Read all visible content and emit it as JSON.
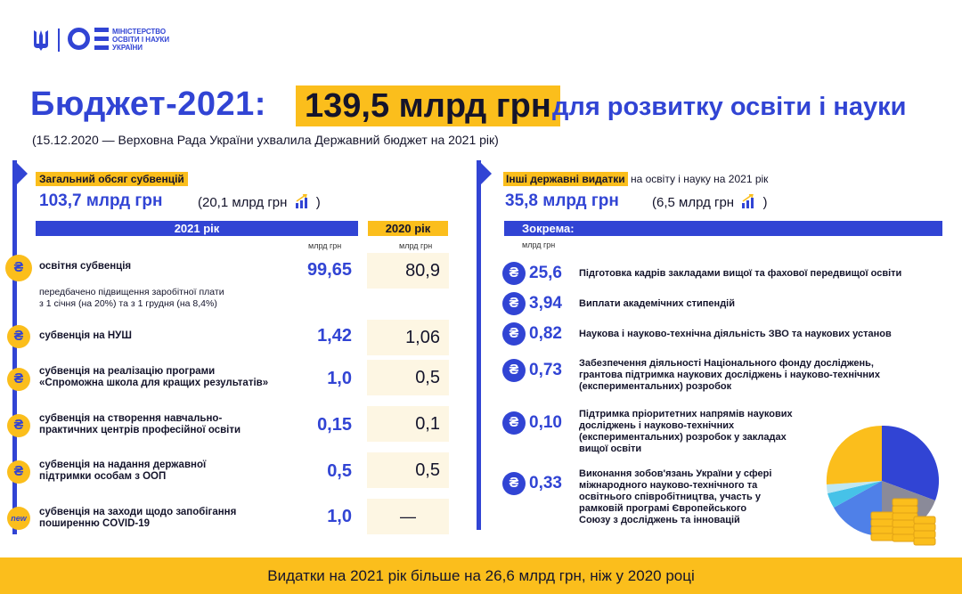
{
  "logo": {
    "line1": "МІНІСТЕРСТВО",
    "line2": "ОСВІТИ І НАУКИ",
    "line3": "УКРАЇНИ"
  },
  "header": {
    "title_left": "Бюджет-2021:",
    "title_highlight": "139,5 млрд грн",
    "title_right": "для розвитку освіти і науки",
    "subtitle": "(15.12.2020 — Верховна Рада України ухвалила Державний бюджет на 2021 рік)"
  },
  "left": {
    "label": "Загальний обсяг субвенцій",
    "amount": "103,7 млрд грн",
    "delta_open": "(20,1 млрд грн",
    "delta_close": ")",
    "col_2021": "2021 рік",
    "col_2020": "2020 рік",
    "unit_2021": "млрд грн",
    "unit_2020": "млрд грн",
    "rows": [
      {
        "icon": "₴",
        "label": "освітня субвенція",
        "v2021": "99,65",
        "v2020": "80,9"
      },
      {
        "icon": "₴",
        "label": "субвенція на НУШ",
        "v2021": "1,42",
        "v2020": "1,06"
      },
      {
        "icon": "₴",
        "label1": "субвенція на реалізацію програми",
        "label2": "«Спроможна школа для кращих результатів»",
        "v2021": "1,0",
        "v2020": "0,5"
      },
      {
        "icon": "₴",
        "label1": "субвенція на створення навчально-",
        "label2": "практичних центрів професійної освіти",
        "v2021": "0,15",
        "v2020": "0,1"
      },
      {
        "icon": "₴",
        "label1": "субвенція на надання державної",
        "label2": "підтримки особам з ООП",
        "v2021": "0,5",
        "v2020": "0,5"
      },
      {
        "icon": "new",
        "label1": "субвенція на заходи щодо запобігання",
        "label2": "поширенню COVID-19",
        "v2021": "1,0",
        "v2020": "—"
      }
    ],
    "note1": "передбачено підвищення заробітної плати",
    "note2": "з 1 січня (на 20%) та з 1 грудня (на 8,4%)"
  },
  "right": {
    "label": "Інші державні видатки",
    "label_rest": " на освіту і науку на 2021 рік",
    "amount": "35,8 млрд грн",
    "delta_open": "(6,5 млрд грн",
    "delta_close": ")",
    "section": "Зокрема:",
    "unit": "млрд грн",
    "items": [
      {
        "icon": "₴",
        "value": "25,6",
        "lines": [
          "Підготовка кадрів закладами вищої та фахової передвищої освіти"
        ]
      },
      {
        "icon": "₴",
        "value": "3,94",
        "lines": [
          "Виплати академічних стипендій"
        ]
      },
      {
        "icon": "₴",
        "value": "0,82",
        "lines": [
          "Наукова і науково-технічна діяльність ЗВО та наукових установ"
        ]
      },
      {
        "icon": "₴",
        "value": "0,73",
        "lines": [
          "Забезпечення діяльності Національного фонду досліджень,",
          "грантова підтримка наукових досліджень і науково-технічних",
          "(експериментальних) розробок"
        ]
      },
      {
        "icon": "₴",
        "value": "0,10",
        "lines": [
          "Підтримка пріоритетних напрямів наукових",
          "досліджень і науково-технічних",
          "(експериментальних) розробок у закладах",
          "вищої освіти"
        ]
      },
      {
        "icon": "₴",
        "value": "0,33",
        "lines": [
          "Виконання зобов'язань України у сфері",
          "міжнародного науково-технічного та",
          "освітнього співробітництва, участь у",
          "рамковій програмі Європейського",
          "Союзу з досліджень та інновацій"
        ]
      }
    ]
  },
  "footer": "Видатки на 2021 рік більше на 26,6 млрд грн, ніж у 2020 році",
  "colors": {
    "blue": "#3144d4",
    "yellow": "#fbbe1c",
    "cream": "#fdf6e3"
  }
}
